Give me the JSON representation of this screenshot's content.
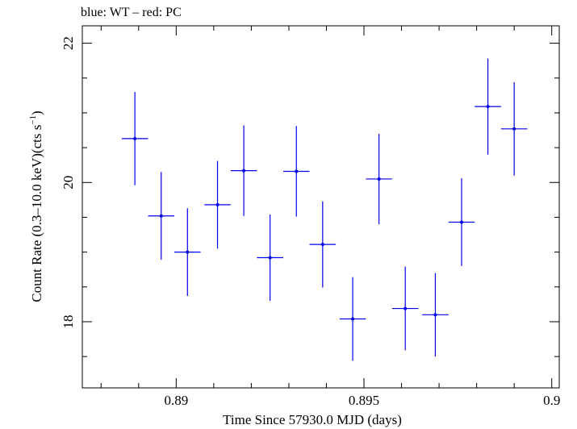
{
  "chart_data": {
    "type": "scatter",
    "title": "blue: WT – red: PC",
    "xlabel": "Time Since 57930.0 MJD (days)",
    "ylabel_main": "Count Rate (0.3–10.0 keV)(cts s",
    "ylabel_sup": "−1",
    "ylabel_close": ")",
    "xlim": [
      0.8875,
      0.9002
    ],
    "ylim": [
      17.05,
      22.25
    ],
    "x_major_ticks": [
      0.89,
      0.895,
      0.9
    ],
    "x_tick_labels": [
      "0.89",
      "0.895",
      "0.9"
    ],
    "x_minor_step": 0.001,
    "y_major_ticks": [
      18,
      20,
      22
    ],
    "y_tick_labels": [
      "18",
      "20",
      "22"
    ],
    "y_minor_step": 0.5,
    "grid": false,
    "series": [
      {
        "color": "#0000ee",
        "points": [
          {
            "x": 0.8889,
            "xerr": 0.00035,
            "y": 20.63,
            "yerr": 0.67
          },
          {
            "x": 0.8896,
            "xerr": 0.00035,
            "y": 19.52,
            "yerr": 0.63
          },
          {
            "x": 0.8903,
            "xerr": 0.00035,
            "y": 19.0,
            "yerr": 0.63
          },
          {
            "x": 0.8911,
            "xerr": 0.00035,
            "y": 19.68,
            "yerr": 0.63
          },
          {
            "x": 0.8918,
            "xerr": 0.00035,
            "y": 20.17,
            "yerr": 0.65
          },
          {
            "x": 0.8925,
            "xerr": 0.00035,
            "y": 18.92,
            "yerr": 0.62
          },
          {
            "x": 0.8932,
            "xerr": 0.00035,
            "y": 20.16,
            "yerr": 0.65
          },
          {
            "x": 0.8939,
            "xerr": 0.00035,
            "y": 19.11,
            "yerr": 0.62
          },
          {
            "x": 0.8947,
            "xerr": 0.00035,
            "y": 18.04,
            "yerr": 0.6
          },
          {
            "x": 0.8954,
            "xerr": 0.00035,
            "y": 20.05,
            "yerr": 0.65
          },
          {
            "x": 0.8961,
            "xerr": 0.00035,
            "y": 18.19,
            "yerr": 0.6
          },
          {
            "x": 0.8969,
            "xerr": 0.00035,
            "y": 18.1,
            "yerr": 0.6
          },
          {
            "x": 0.8976,
            "xerr": 0.00035,
            "y": 19.43,
            "yerr": 0.63
          },
          {
            "x": 0.8983,
            "xerr": 0.00035,
            "y": 21.09,
            "yerr": 0.69
          },
          {
            "x": 0.899,
            "xerr": 0.00035,
            "y": 20.77,
            "yerr": 0.67
          }
        ]
      }
    ]
  }
}
